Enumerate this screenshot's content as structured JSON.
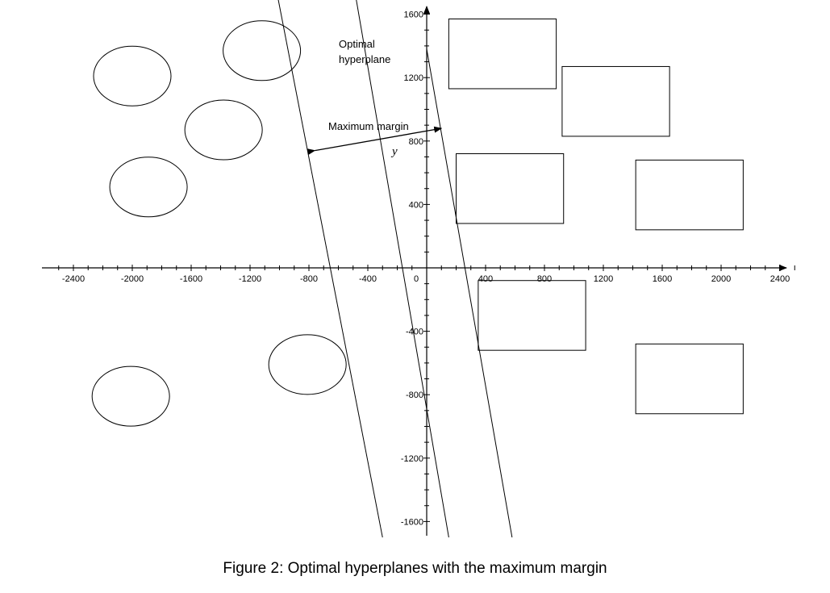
{
  "figure": {
    "caption": "Figure 2: Optimal hyperplanes with the maximum margin",
    "annotations": {
      "optimal_hyperplane_line1": "Optimal",
      "optimal_hyperplane_line2": "hyperplane",
      "maximum_margin": "Maximum margin",
      "y_symbol": "y"
    },
    "x_axis": {
      "range": [
        -2580,
        2600
      ],
      "ticks": [
        -2400,
        -2000,
        -1600,
        -1200,
        -800,
        -400,
        0,
        400,
        800,
        1200,
        1600,
        2000,
        2400
      ],
      "tick_labels": [
        "-2400",
        "-2000",
        "-1600",
        "-1200",
        "-800",
        "-400",
        "0",
        "400",
        "800",
        "1200",
        "1600",
        "2000",
        "2400"
      ]
    },
    "y_axis": {
      "range": [
        -1700,
        1700
      ],
      "ticks": [
        -1600,
        -1200,
        -800,
        -400,
        400,
        800,
        1200,
        1600
      ],
      "tick_labels": [
        "-1600",
        "-1200",
        "-800",
        "-400",
        "400",
        "800",
        "1200",
        "1600"
      ]
    },
    "class_a_ellipses": [
      {
        "cx": -2000,
        "cy": 1210
      },
      {
        "cx": -1120,
        "cy": 1370
      },
      {
        "cx": -1380,
        "cy": 870
      },
      {
        "cx": -1890,
        "cy": 510
      },
      {
        "cx": -810,
        "cy": -610
      },
      {
        "cx": -2010,
        "cy": -810
      }
    ],
    "class_b_rectangles": [
      {
        "x1": 150,
        "y1": 1570,
        "x2": 880,
        "y2": 1130
      },
      {
        "x1": 920,
        "y1": 1270,
        "x2": 1650,
        "y2": 830
      },
      {
        "x1": 200,
        "y1": 720,
        "x2": 930,
        "y2": 280
      },
      {
        "x1": 1420,
        "y1": 680,
        "x2": 2150,
        "y2": 240
      },
      {
        "x1": 350,
        "y1": -80,
        "x2": 1080,
        "y2": -520
      },
      {
        "x1": 1420,
        "y1": -480,
        "x2": 2150,
        "y2": -920
      }
    ],
    "hyperplanes": [
      {
        "role": "margin-left",
        "p1": [
          -1010,
          1700
        ],
        "p2": [
          -300,
          -1700
        ]
      },
      {
        "role": "optimal",
        "p1": [
          -480,
          1700
        ],
        "p2": [
          150,
          -1700
        ]
      },
      {
        "role": "margin-right",
        "p1": [
          0,
          1380
        ],
        "p2": [
          580,
          -1700
        ]
      }
    ],
    "margin_arrow": {
      "from": [
        -760,
        740
      ],
      "to": [
        100,
        880
      ]
    }
  }
}
